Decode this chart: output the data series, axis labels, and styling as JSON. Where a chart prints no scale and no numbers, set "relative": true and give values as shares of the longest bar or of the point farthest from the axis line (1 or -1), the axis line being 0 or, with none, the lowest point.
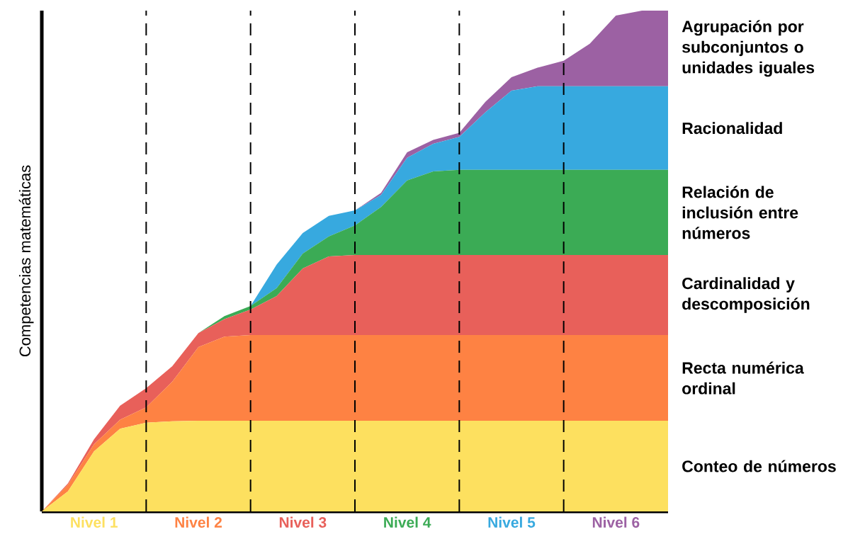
{
  "chart_data": {
    "type": "area",
    "stacked": true,
    "relative": true,
    "ylabel": "Competencias matemáticas",
    "categories": [
      null,
      null,
      "Nivel 1",
      null,
      null,
      null,
      "Nivel 2",
      null,
      null,
      null,
      "Nivel 3",
      null,
      null,
      null,
      "Nivel 4",
      null,
      null,
      null,
      "Nivel 5",
      null,
      null,
      null,
      "Nivel 6",
      null,
      null
    ],
    "series": [
      {
        "name": "Conteo de números",
        "color": "#fde05f",
        "values": [
          0,
          0.04,
          0.12,
          0.165,
          0.177,
          0.18,
          0.181,
          0.181,
          0.181,
          0.181,
          0.181,
          0.181,
          0.181,
          0.181,
          0.181,
          0.181,
          0.181,
          0.181,
          0.181,
          0.181,
          0.181,
          0.181,
          0.181,
          0.181,
          0.181
        ]
      },
      {
        "name": "Recta numérica ordinal",
        "color": "#fe8243",
        "values": [
          0,
          0.013,
          0.014,
          0.018,
          0.031,
          0.079,
          0.147,
          0.168,
          0.171,
          0.171,
          0.171,
          0.171,
          0.171,
          0.171,
          0.171,
          0.171,
          0.171,
          0.171,
          0.171,
          0.171,
          0.171,
          0.171,
          0.171,
          0.171,
          0.171
        ]
      },
      {
        "name": "Cardinalidad y descomposición",
        "color": "#e8605a",
        "values": [
          0,
          0.003,
          0.01,
          0.028,
          0.038,
          0.031,
          0.028,
          0.035,
          0.051,
          0.078,
          0.133,
          0.157,
          0.16,
          0.16,
          0.16,
          0.16,
          0.16,
          0.16,
          0.16,
          0.16,
          0.16,
          0.16,
          0.16,
          0.16,
          0.16
        ]
      },
      {
        "name": "Relación de inclusión entre números",
        "color": "#3bab55",
        "values": [
          0,
          0,
          0,
          0,
          0,
          0,
          0,
          0.006,
          0.007,
          0.016,
          0.03,
          0.04,
          0.059,
          0.096,
          0.149,
          0.167,
          0.17,
          0.17,
          0.17,
          0.17,
          0.17,
          0.17,
          0.17,
          0.17,
          0.17
        ]
      },
      {
        "name": "Racionalidad",
        "color": "#37a9df",
        "values": [
          0,
          0,
          0,
          0,
          0,
          0,
          0,
          0,
          0,
          0.047,
          0.041,
          0.041,
          0.03,
          0.024,
          0.045,
          0.055,
          0.066,
          0.115,
          0.158,
          0.167,
          0.167,
          0.167,
          0.167,
          0.167,
          0.167
        ]
      },
      {
        "name": "Agrupación por subconjuntos o unidades iguales",
        "color": "#9c61a3",
        "values": [
          0,
          0,
          0,
          0,
          0,
          0,
          0,
          0,
          0,
          0,
          0,
          0,
          0,
          0.004,
          0.011,
          0.008,
          0.008,
          0.021,
          0.027,
          0.037,
          0.051,
          0.085,
          0.141,
          0.151,
          0.151
        ]
      }
    ],
    "grid": "x",
    "line_style": "dashed"
  }
}
